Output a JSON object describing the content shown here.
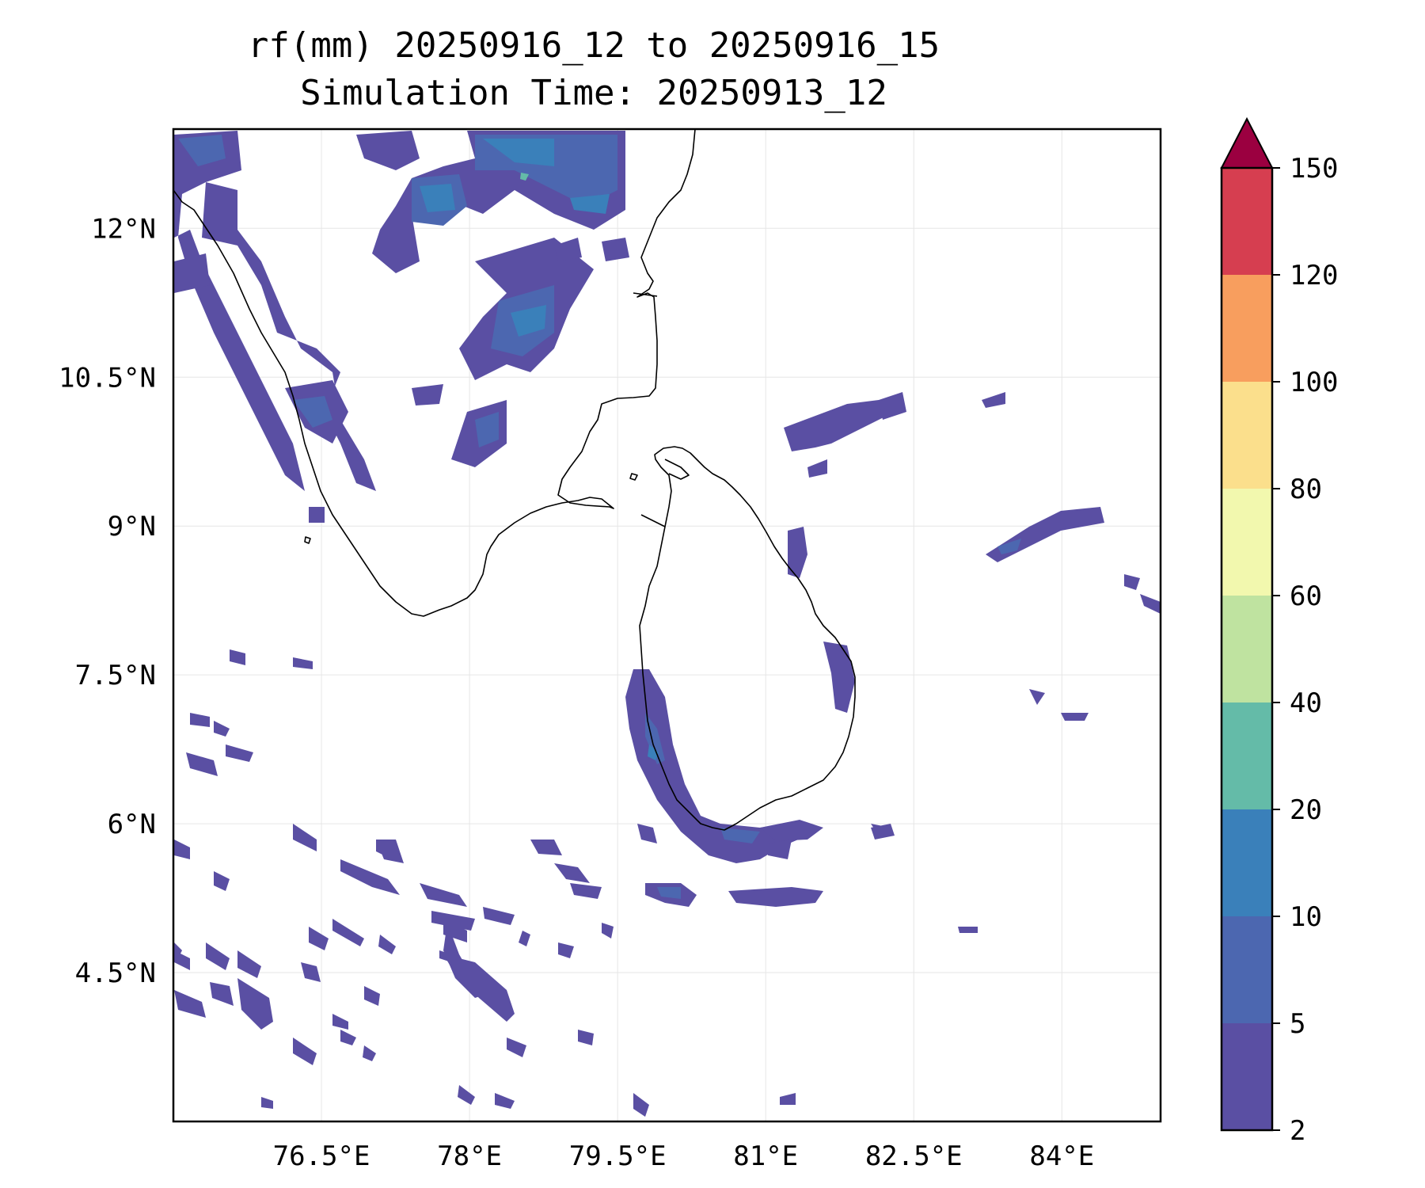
{
  "title": "rf(mm) 20250916_12 to 20250916_15",
  "subtitle": "Simulation Time: 20250913_12",
  "map": {
    "lon_range": [
      75.0,
      85.0
    ],
    "lat_range": [
      3.0,
      13.0
    ],
    "gridlines": true,
    "x_ticks": [
      {
        "value": 76.5,
        "label": "76.5°E"
      },
      {
        "value": 78.0,
        "label": "78°E"
      },
      {
        "value": 79.5,
        "label": "79.5°E"
      },
      {
        "value": 81.0,
        "label": "81°E"
      },
      {
        "value": 82.5,
        "label": "82.5°E"
      },
      {
        "value": 84.0,
        "label": "84°E"
      }
    ],
    "y_ticks": [
      {
        "value": 12.0,
        "label": "12°N"
      },
      {
        "value": 10.5,
        "label": "10.5°N"
      },
      {
        "value": 9.0,
        "label": "9°N"
      },
      {
        "value": 7.5,
        "label": "7.5°N"
      },
      {
        "value": 6.0,
        "label": "6°N"
      },
      {
        "value": 4.5,
        "label": "4.5°N"
      }
    ]
  },
  "colorbar": {
    "levels": [
      2,
      5,
      10,
      20,
      40,
      60,
      80,
      100,
      120,
      150
    ],
    "labels": [
      "2",
      "5",
      "10",
      "20",
      "40",
      "60",
      "80",
      "100",
      "120",
      "150"
    ],
    "colors": [
      "#5a4fa3",
      "#4c67b0",
      "#3a80ba",
      "#64bba8",
      "#bfe3a0",
      "#f2f8ae",
      "#fbdf8c",
      "#f89e5e",
      "#d63e50"
    ],
    "extend_color": "#9b0040"
  }
}
